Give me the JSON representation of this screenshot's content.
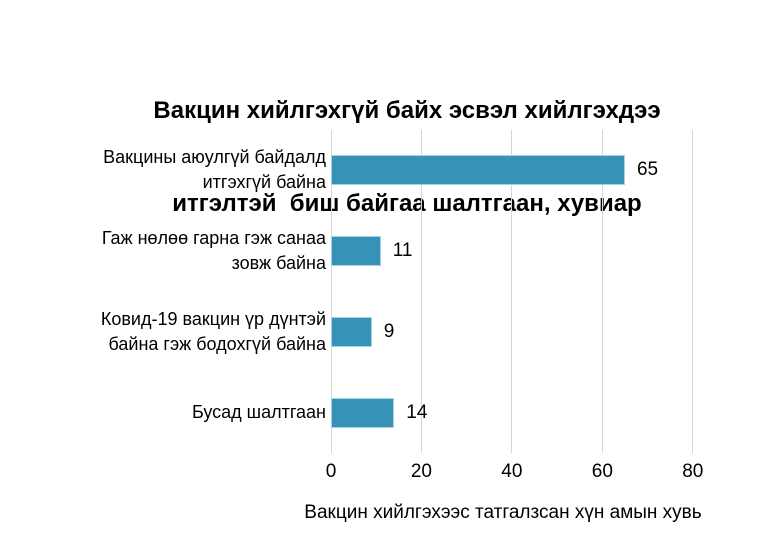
{
  "figure": {
    "title_lines": [
      "Вакцин хийлгэхгүй байх эсвэл хийлгэхдээ",
      "итгэлтэй  биш байгаа шалтгаан, хувиар"
    ],
    "xlabel": "Вакцин хийлгэхээс татгалзсан хүн амын хувь"
  },
  "chart_data": {
    "type": "bar",
    "orientation": "horizontal",
    "title": "Вакцин хийлгэхгүй байх эсвэл хийлгэхдээ итгэлтэй биш байгаа шалтгаан, хувиар",
    "categories": [
      "Вакцины аюулгүй байдалд итгэхгүй байна",
      "Гаж нөлөө гарна гэж санаа зовж байна",
      "Ковид-19 вакцин үр дүнтэй байна гэж бодохгүй байна",
      "Бусад шалтгаан"
    ],
    "category_lines": [
      [
        "Вакцины аюулгүй байдалд",
        "итгэхгүй байна"
      ],
      [
        "Гаж нөлөө гарна гэж санаа",
        "зовж байна"
      ],
      [
        "Ковид-19 вакцин үр дүнтэй",
        "байна гэж бодохгүй байна"
      ],
      [
        "Бусад шалтгаан"
      ]
    ],
    "values": [
      65,
      11,
      9,
      14
    ],
    "value_labels": [
      "65",
      "11",
      "9",
      "14"
    ],
    "xlabel": "Вакцин хийлгэхээс татгалзсан хүн амын хувь",
    "xticks": [
      0,
      20,
      40,
      60,
      80
    ],
    "xlim": [
      0,
      90
    ],
    "grid": true,
    "legend_position": "none",
    "colors": {
      "bar": "#3593b7",
      "bar_edge": "#a9d2e4",
      "gridline": "#d6d6d6",
      "text": "#000000",
      "background": "#ffffff"
    }
  }
}
